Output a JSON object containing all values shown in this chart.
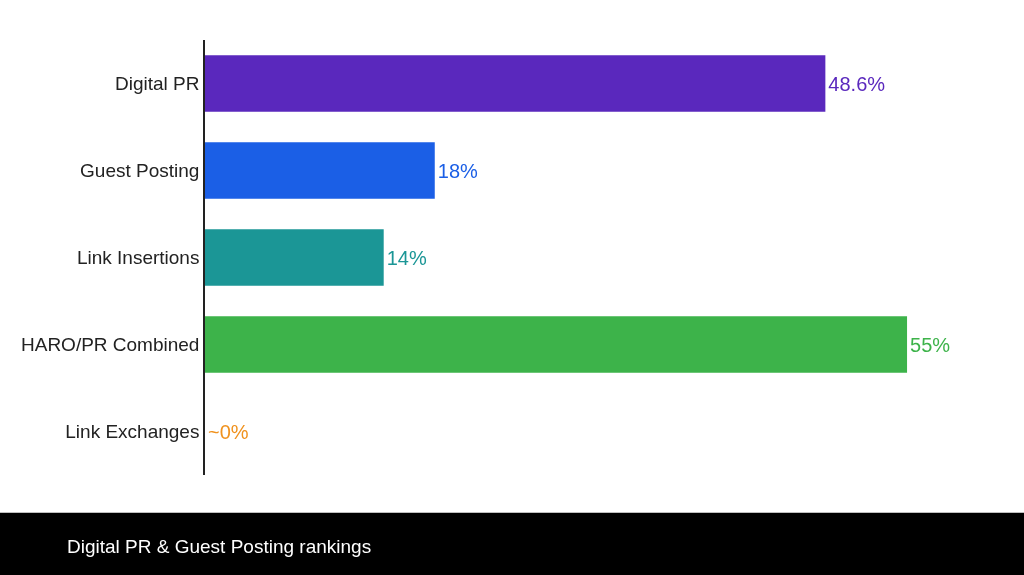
{
  "chart_data": {
    "type": "bar",
    "orientation": "horizontal",
    "categories": [
      "Digital PR",
      "Guest Posting",
      "Link Insertions",
      "HARO/PR Combined",
      "Link Exchanges"
    ],
    "values": [
      48.6,
      18,
      14,
      55,
      0
    ],
    "colors": [
      "#5a28bd",
      "#1b5fe6",
      "#1b9696",
      "#3db34a",
      "#f0921e"
    ],
    "value_labels": [
      "48.6%",
      "18%",
      "14%",
      "55%",
      "~0%"
    ],
    "annotations": [
      "Digital PR & Guest Posting rankings"
    ],
    "legend": false,
    "tick_labels": "y"
  }
}
